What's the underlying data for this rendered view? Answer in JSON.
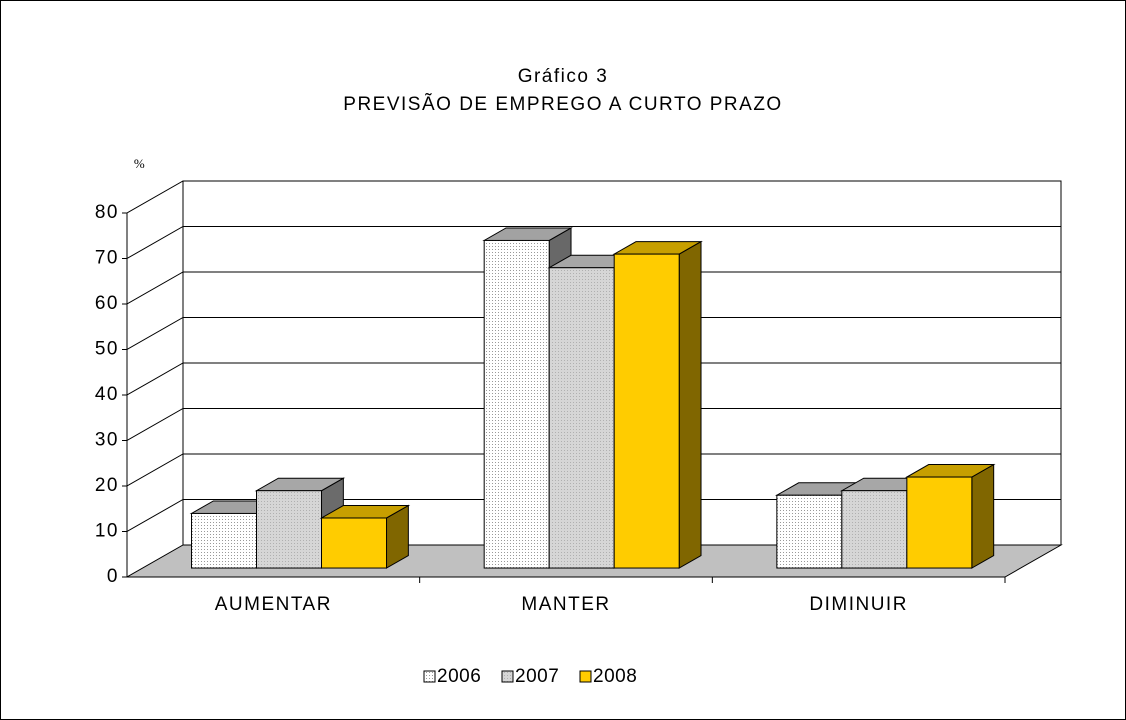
{
  "chart_data": {
    "type": "bar3d",
    "title": "Gráfico 3",
    "subtitle": "PREVISÃO DE EMPREGO A CURTO PRAZO",
    "y_label": "%",
    "categories": [
      "AUMENTAR",
      "MANTER",
      "DIMINUIR"
    ],
    "series": [
      {
        "name": "2006",
        "color": "#ffffff",
        "values": [
          12,
          72,
          16
        ]
      },
      {
        "name": "2007",
        "color": "#d6d6d6",
        "values": [
          17,
          66,
          17
        ]
      },
      {
        "name": "2008",
        "color": "#ffcc00",
        "values": [
          11,
          69,
          20
        ]
      }
    ],
    "ylim": [
      0,
      80
    ],
    "yticks": [
      0,
      10,
      20,
      30,
      40,
      50,
      60,
      70,
      80
    ],
    "grid": true,
    "legend": "bottom"
  }
}
